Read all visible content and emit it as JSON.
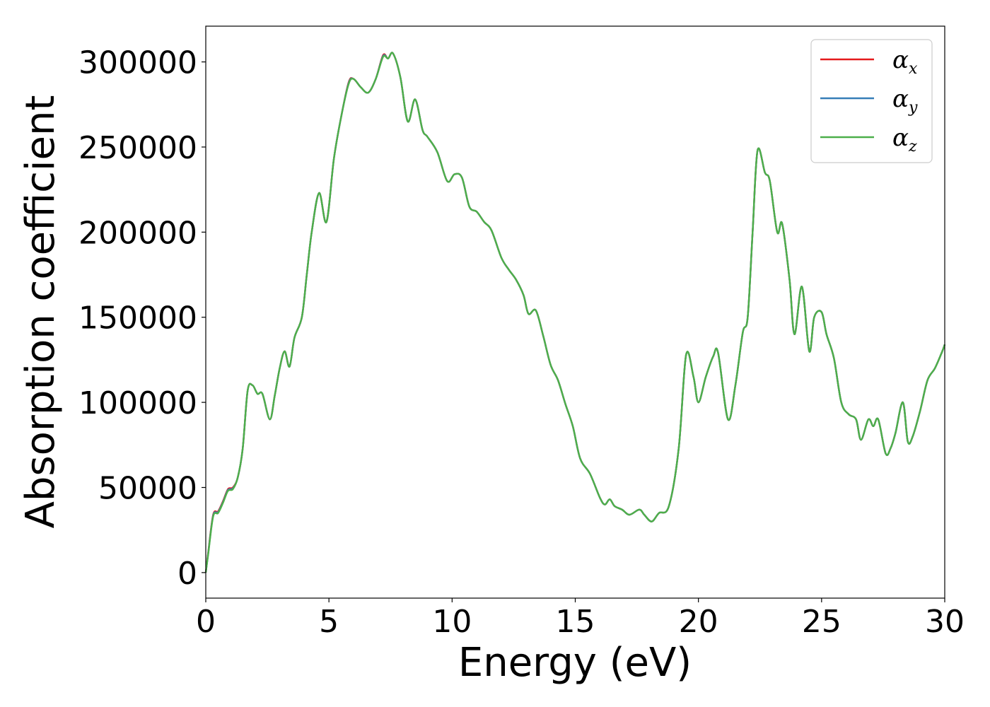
{
  "chart_data": {
    "type": "line",
    "title": "",
    "xlabel": "Energy (eV)",
    "ylabel": "Absorption coefficient",
    "xlim": [
      0,
      30
    ],
    "ylim": [
      -15000,
      321000
    ],
    "xticks": [
      "0",
      "5",
      "10",
      "15",
      "20",
      "25",
      "30"
    ],
    "xtick_values": [
      0,
      5,
      10,
      15,
      20,
      25,
      30
    ],
    "yticks": [
      "0",
      "50000",
      "100000",
      "150000",
      "200000",
      "250000",
      "300000"
    ],
    "ytick_values": [
      0,
      50000,
      100000,
      150000,
      200000,
      250000,
      300000
    ],
    "grid": false,
    "legend_position": "top-right",
    "x": [
      0,
      0.1,
      0.3,
      0.5,
      0.7,
      0.9,
      1.1,
      1.3,
      1.5,
      1.7,
      1.9,
      2.1,
      2.3,
      2.6,
      2.8,
      3.0,
      3.2,
      3.4,
      3.6,
      3.9,
      4.1,
      4.3,
      4.6,
      4.9,
      5.2,
      5.5,
      5.8,
      6.0,
      6.3,
      6.6,
      6.9,
      7.2,
      7.4,
      7.6,
      7.9,
      8.2,
      8.5,
      8.8,
      9.0,
      9.4,
      9.8,
      10.1,
      10.4,
      10.7,
      11.0,
      11.3,
      11.6,
      12.0,
      12.3,
      12.6,
      12.9,
      13.1,
      13.4,
      13.7,
      14.0,
      14.3,
      14.6,
      14.9,
      15.2,
      15.6,
      16.0,
      16.2,
      16.4,
      16.6,
      16.9,
      17.2,
      17.6,
      17.8,
      18.1,
      18.4,
      18.8,
      19.2,
      19.5,
      19.8,
      20.0,
      20.3,
      20.6,
      20.8,
      21.2,
      21.5,
      21.8,
      22.0,
      22.2,
      22.4,
      22.7,
      22.9,
      23.2,
      23.4,
      23.7,
      23.9,
      24.2,
      24.5,
      24.7,
      25.0,
      25.2,
      25.5,
      25.8,
      26.1,
      26.4,
      26.6,
      26.9,
      27.1,
      27.3,
      27.6,
      27.8,
      28.0,
      28.3,
      28.5,
      28.7,
      29.0,
      29.3,
      29.6,
      29.9,
      30.0
    ],
    "series": [
      {
        "name": "α_x",
        "label_main": "α",
        "label_sub": "x",
        "color": "#e41a1c",
        "values": [
          0,
          12000,
          34000,
          36000,
          42000,
          49000,
          50000,
          56000,
          73000,
          107000,
          110000,
          105000,
          105000,
          90000,
          104000,
          120000,
          130000,
          121000,
          138000,
          150000,
          175000,
          200000,
          223000,
          206000,
          243000,
          268000,
          288000,
          290000,
          285000,
          282000,
          290000,
          304000,
          302000,
          305000,
          291000,
          265000,
          278000,
          260000,
          256000,
          247000,
          230000,
          234000,
          232000,
          215000,
          212000,
          206000,
          201000,
          185000,
          178000,
          172000,
          163000,
          152000,
          154000,
          139000,
          122000,
          113000,
          99000,
          86000,
          67000,
          58000,
          44000,
          40000,
          43000,
          39000,
          37000,
          34000,
          37000,
          34000,
          30000,
          35000,
          39000,
          73000,
          128000,
          115000,
          100000,
          115000,
          127000,
          129000,
          90000,
          110000,
          141000,
          150000,
          200000,
          248000,
          235000,
          230000,
          200000,
          205000,
          172000,
          140000,
          168000,
          130000,
          150000,
          153000,
          140000,
          126000,
          100000,
          93000,
          90000,
          78000,
          90000,
          86000,
          90000,
          70000,
          73000,
          82000,
          100000,
          77000,
          80000,
          95000,
          113000,
          120000,
          130000,
          134000
        ]
      },
      {
        "name": "α_y",
        "label_main": "α",
        "label_sub": "y",
        "color": "#377eb8",
        "values": [
          0,
          11500,
          33500,
          35500,
          41500,
          48500,
          49500,
          56000,
          73000,
          107000,
          110000,
          105000,
          105000,
          90000,
          104000,
          120000,
          130000,
          121000,
          138000,
          150000,
          175000,
          200000,
          223000,
          206000,
          243000,
          268000,
          287500,
          290000,
          285000,
          282000,
          290000,
          303500,
          302000,
          305000,
          291000,
          265000,
          278000,
          260000,
          256000,
          247000,
          230000,
          234000,
          232000,
          215000,
          212000,
          206000,
          201000,
          185000,
          178000,
          172000,
          163000,
          152000,
          154000,
          139000,
          122000,
          113000,
          99000,
          86000,
          67000,
          58000,
          44000,
          40000,
          43000,
          39000,
          37000,
          34000,
          37000,
          34000,
          30000,
          35000,
          39000,
          73000,
          128000,
          115000,
          100000,
          115000,
          127000,
          129000,
          90000,
          110000,
          141000,
          150000,
          200000,
          248000,
          235000,
          230000,
          200000,
          205000,
          172000,
          140000,
          168000,
          130000,
          150000,
          153000,
          140000,
          126000,
          100000,
          93000,
          90000,
          78000,
          90000,
          86000,
          90000,
          70000,
          73000,
          82000,
          100000,
          77000,
          80000,
          95000,
          113000,
          120000,
          130000,
          134000
        ]
      },
      {
        "name": "α_z",
        "label_main": "α",
        "label_sub": "z",
        "color": "#4daf4a",
        "values": [
          0,
          11000,
          33000,
          35000,
          41000,
          48000,
          49000,
          56000,
          73000,
          107000,
          110000,
          105000,
          105000,
          90000,
          104000,
          120000,
          130000,
          121000,
          138000,
          150000,
          175000,
          200000,
          223000,
          206000,
          243000,
          268000,
          287000,
          290000,
          285000,
          282000,
          290000,
          303000,
          302000,
          305000,
          291000,
          265000,
          278000,
          260000,
          256000,
          247000,
          230000,
          234000,
          232000,
          215000,
          212000,
          206000,
          201000,
          185000,
          178000,
          172000,
          163000,
          152000,
          154000,
          139000,
          122000,
          113000,
          99000,
          86000,
          67000,
          58000,
          44000,
          40000,
          43000,
          39000,
          37000,
          34000,
          37000,
          34000,
          30000,
          35000,
          39000,
          73000,
          128000,
          115000,
          100000,
          115000,
          127000,
          129000,
          90000,
          110000,
          141000,
          150000,
          200000,
          248000,
          235000,
          230000,
          200000,
          205000,
          172000,
          140000,
          168000,
          130000,
          150000,
          153000,
          140000,
          126000,
          100000,
          93000,
          90000,
          78000,
          90000,
          86000,
          90000,
          70000,
          73000,
          82000,
          100000,
          77000,
          80000,
          95000,
          113000,
          120000,
          130000,
          134000
        ]
      }
    ]
  }
}
